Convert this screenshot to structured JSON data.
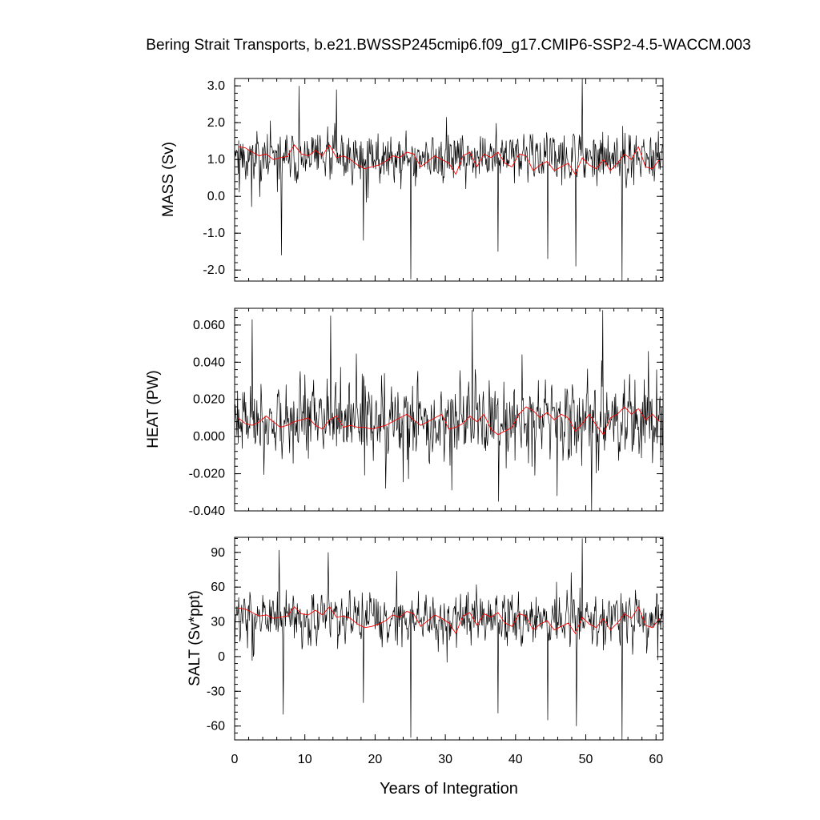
{
  "title": "Bering Strait Transports, b.e21.BWSSP245cmip6.f09_g17.CMIP6-SSP2-4.5-WACCM.003",
  "xlabel": "Years of Integration",
  "colors": {
    "monthly": "#000000",
    "annual": "#ff0000",
    "axis": "#000000"
  },
  "chart_data": [
    {
      "type": "line",
      "ylabel": "MASS (Sv)",
      "xlim": [
        0,
        61
      ],
      "ylim": [
        -2.3,
        3.2
      ],
      "xticks": [
        "0",
        "10",
        "20",
        "30",
        "40",
        "50",
        "60"
      ],
      "yticks": [
        {
          "v": 3.0,
          "label": "3.0"
        },
        {
          "v": 2.0,
          "label": "2.0"
        },
        {
          "v": 1.0,
          "label": "1.0"
        },
        {
          "v": 0.0,
          "label": "0.0"
        },
        {
          "v": -1.0,
          "label": "-1.0"
        },
        {
          "v": -2.0,
          "label": "-2.0"
        }
      ],
      "annual_mean": [
        1.35,
        1.32,
        1.2,
        1.1,
        1.15,
        1.0,
        1.05,
        1.08,
        1.4,
        1.15,
        1.1,
        1.25,
        1.1,
        1.4,
        1.05,
        1.1,
        1.0,
        0.85,
        0.75,
        0.8,
        0.85,
        0.95,
        1.1,
        1.05,
        1.2,
        1.15,
        0.8,
        0.95,
        1.1,
        1.0,
        0.9,
        0.6,
        1.1,
        1.2,
        0.8,
        1.15,
        1.05,
        1.2,
        0.9,
        0.8,
        1.15,
        1.1,
        0.7,
        0.85,
        0.95,
        0.7,
        0.8,
        0.9,
        0.6,
        1.05,
        0.85,
        0.75,
        1.0,
        0.7,
        0.9,
        1.15,
        1.0,
        1.35,
        0.8,
        0.75,
        1.0
      ],
      "monthly": {
        "mean": 1.05,
        "amp": 0.55,
        "min": -2.3,
        "max": 3.2,
        "seed": 11,
        "spikes": [
          [
            9.2,
            3.0
          ],
          [
            14.5,
            2.9
          ],
          [
            49.5,
            3.2
          ],
          [
            25.1,
            -2.25
          ],
          [
            55.2,
            -2.3
          ],
          [
            6.7,
            -1.6
          ],
          [
            48.6,
            -1.9
          ],
          [
            18.3,
            -1.2
          ],
          [
            37.5,
            -1.5
          ],
          [
            44.6,
            -1.7
          ]
        ]
      }
    },
    {
      "type": "line",
      "ylabel": "HEAT (PW)",
      "xlim": [
        0,
        61
      ],
      "ylim": [
        -0.04,
        0.069
      ],
      "xticks": [
        "0",
        "10",
        "20",
        "30",
        "40",
        "50",
        "60"
      ],
      "yticks": [
        {
          "v": 0.06,
          "label": "0.060"
        },
        {
          "v": 0.04,
          "label": "0.040"
        },
        {
          "v": 0.02,
          "label": "0.020"
        },
        {
          "v": 0.0,
          "label": "0.000"
        },
        {
          "v": -0.02,
          "label": "-0.020"
        },
        {
          "v": -0.04,
          "label": "-0.040"
        }
      ],
      "annual_mean": [
        0.01,
        0.007,
        0.006,
        0.008,
        0.011,
        0.008,
        0.005,
        0.006,
        0.008,
        0.009,
        0.01,
        0.006,
        0.004,
        0.009,
        0.011,
        0.005,
        0.006,
        0.005,
        0.005,
        0.004,
        0.005,
        0.006,
        0.008,
        0.01,
        0.012,
        0.009,
        0.006,
        0.008,
        0.01,
        0.012,
        0.004,
        0.005,
        0.007,
        0.011,
        0.008,
        0.012,
        0.004,
        0.001,
        0.003,
        0.005,
        0.012,
        0.016,
        0.014,
        0.01,
        0.013,
        0.009,
        0.012,
        0.01,
        0.003,
        0.007,
        0.012,
        0.006,
        0.001,
        0.01,
        0.012,
        0.016,
        0.012,
        0.015,
        0.009,
        0.012,
        0.008
      ],
      "monthly": {
        "mean": 0.009,
        "amp": 0.017,
        "min": -0.04,
        "max": 0.069,
        "seed": 23,
        "spikes": [
          [
            2.5,
            0.063
          ],
          [
            13.7,
            0.065
          ],
          [
            33.8,
            0.068
          ],
          [
            52.4,
            0.068
          ],
          [
            50.8,
            -0.04
          ],
          [
            21.5,
            -0.028
          ],
          [
            37.6,
            -0.035
          ],
          [
            45.9,
            -0.032
          ]
        ]
      }
    },
    {
      "type": "line",
      "ylabel": "SALT (Sv*ppt)",
      "xlim": [
        0,
        61
      ],
      "ylim": [
        -72,
        103
      ],
      "xticks": [
        "0",
        "10",
        "20",
        "30",
        "40",
        "50",
        "60"
      ],
      "yticks": [
        {
          "v": 90,
          "label": "90"
        },
        {
          "v": 60,
          "label": "60"
        },
        {
          "v": 30,
          "label": "30"
        },
        {
          "v": 0,
          "label": "0"
        },
        {
          "v": -30,
          "label": "-30"
        },
        {
          "v": -60,
          "label": "-60"
        }
      ],
      "annual_mean": [
        42,
        41,
        38,
        35,
        36,
        33,
        34,
        35,
        43,
        37,
        36,
        40,
        36,
        43,
        34,
        35,
        33,
        28,
        25,
        26,
        28,
        31,
        36,
        34,
        39,
        37,
        26,
        31,
        36,
        33,
        29,
        20,
        35,
        38,
        27,
        37,
        34,
        38,
        29,
        26,
        37,
        35,
        23,
        28,
        31,
        23,
        26,
        29,
        20,
        34,
        28,
        25,
        33,
        23,
        29,
        37,
        33,
        43,
        27,
        25,
        33
      ],
      "monthly": {
        "mean": 33,
        "amp": 18,
        "min": -72,
        "max": 103,
        "seed": 37,
        "spikes": [
          [
            6.3,
            92
          ],
          [
            13.3,
            90
          ],
          [
            49.5,
            102
          ],
          [
            25.1,
            -70
          ],
          [
            55.2,
            -72
          ],
          [
            6.9,
            -50
          ],
          [
            48.7,
            -60
          ],
          [
            18.3,
            -40
          ],
          [
            37.5,
            -49
          ],
          [
            44.6,
            -55
          ]
        ]
      }
    }
  ]
}
